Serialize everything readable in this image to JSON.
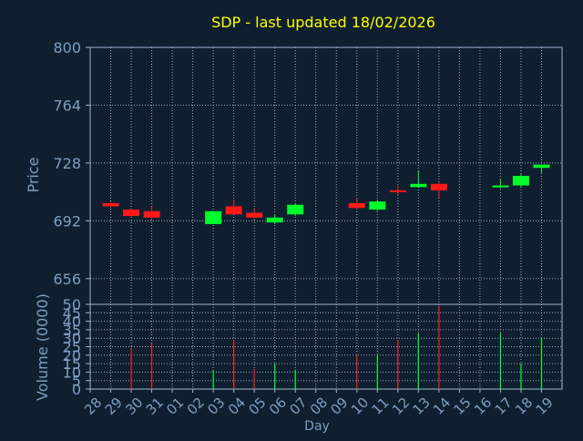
{
  "chart_data": [
    {
      "type": "candlestick",
      "title": "SDP - last updated 18/02/2026",
      "ylabel": "Price",
      "ylim": [
        640,
        800
      ],
      "yticks": [
        800,
        764,
        728,
        692,
        656
      ],
      "grid": true,
      "x": [
        "28",
        "29",
        "30",
        "31",
        "01",
        "02",
        "03",
        "04",
        "05",
        "06",
        "07",
        "08",
        "09",
        "10",
        "11",
        "12",
        "13",
        "14",
        "15",
        "16",
        "17",
        "18",
        "19"
      ],
      "candles": [
        {
          "day": "28",
          "open": 703,
          "close": 701,
          "high": 704,
          "low": 700
        },
        {
          "day": "29",
          "open": 699,
          "close": 695,
          "high": 700,
          "low": 694
        },
        {
          "day": "30",
          "open": 698,
          "close": 694,
          "high": 701,
          "low": 693
        },
        {
          "day": "02",
          "open": 690,
          "close": 698,
          "high": 698,
          "low": 690
        },
        {
          "day": "03",
          "open": 701,
          "close": 696,
          "high": 705,
          "low": 696
        },
        {
          "day": "04",
          "open": 697,
          "close": 694,
          "high": 700,
          "low": 693
        },
        {
          "day": "05",
          "open": 691,
          "close": 694,
          "high": 696,
          "low": 690
        },
        {
          "day": "06",
          "open": 696,
          "close": 702,
          "high": 703,
          "low": 695
        },
        {
          "day": "09",
          "open": 703,
          "close": 700,
          "high": 706,
          "low": 699
        },
        {
          "day": "10",
          "open": 699,
          "close": 704,
          "high": 705,
          "low": 698
        },
        {
          "day": "11",
          "open": 711,
          "close": 710,
          "high": 714,
          "low": 708
        },
        {
          "day": "12",
          "open": 713,
          "close": 715,
          "high": 723,
          "low": 713
        },
        {
          "day": "13",
          "open": 715,
          "close": 711,
          "high": 716,
          "low": 706
        },
        {
          "day": "16",
          "open": 713,
          "close": 714,
          "high": 718,
          "low": 712
        },
        {
          "day": "17",
          "open": 714,
          "close": 720,
          "high": 721,
          "low": 713
        },
        {
          "day": "18",
          "open": 725,
          "close": 727,
          "high": 727,
          "low": 722
        }
      ]
    },
    {
      "type": "bar",
      "ylabel": "Volume (0000)",
      "xlabel": "Day",
      "ylim": [
        0,
        50
      ],
      "yticks": [
        0,
        5,
        10,
        15,
        20,
        25,
        30,
        35,
        40,
        45,
        50
      ],
      "grid": true,
      "categories": [
        "28",
        "29",
        "30",
        "31",
        "01",
        "02",
        "03",
        "04",
        "05",
        "06",
        "07",
        "08",
        "09",
        "10",
        "11",
        "12",
        "13",
        "14",
        "15",
        "16",
        "17",
        "18",
        "19"
      ],
      "values": [
        0,
        24,
        27,
        0,
        0,
        11,
        29,
        12,
        15,
        11,
        0,
        0,
        20,
        20,
        29,
        33,
        49,
        0,
        0,
        33,
        15,
        30,
        0
      ],
      "direction": [
        "",
        "down",
        "down",
        "",
        "",
        "up",
        "down",
        "down",
        "up",
        "up",
        "",
        "",
        "down",
        "up",
        "down",
        "up",
        "down",
        "",
        "",
        "up",
        "up",
        "up",
        ""
      ]
    }
  ],
  "colors": {
    "background": "#0f1f30",
    "up": "#00ff2a",
    "down": "#ff1a1a",
    "title": "#ffff00",
    "axis_text": "#7f9ec2",
    "frame": "#a0b4d0",
    "grid": "#c8d4e4"
  }
}
